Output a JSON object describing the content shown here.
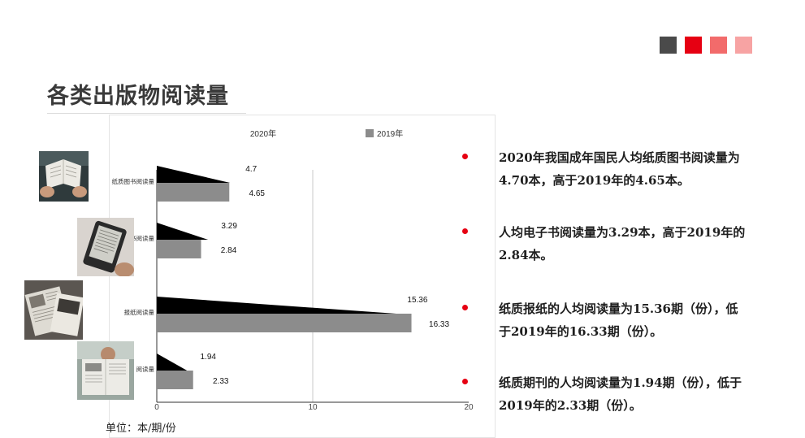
{
  "header": {
    "title": "各类出版物阅读量",
    "accent_squares": [
      "#4a4a4a",
      "#e60012",
      "#f26b6b",
      "#f7a3a3"
    ]
  },
  "chart_data": {
    "type": "bar",
    "orientation": "horizontal",
    "categories": [
      "纸质图书阅读量",
      "电子书阅读量",
      "报纸阅读量",
      "期刊阅读量"
    ],
    "category_labels": [
      "纸质图书阅读量",
      "书阅读量",
      "报纸阅读量",
      "阅读量"
    ],
    "series": [
      {
        "name": "2020年",
        "values": [
          4.7,
          3.29,
          15.36,
          1.94
        ],
        "color": "#000000",
        "shape": "wedge"
      },
      {
        "name": "2019年",
        "values": [
          4.65,
          2.84,
          16.33,
          2.33
        ],
        "color": "#8c8c8c",
        "shape": "bar"
      }
    ],
    "value_labels": {
      "2020年": [
        "4.7",
        "3.29",
        "15.36",
        "1.94"
      ],
      "2019年": [
        "4.65",
        "2.84",
        "16.33",
        "2.33"
      ]
    },
    "xlim": [
      0,
      20
    ],
    "xticks": [
      0,
      10,
      20
    ],
    "xtick_labels": [
      "0",
      "10",
      "20"
    ],
    "grid": "vertical at 10",
    "legend_position": "top",
    "unit": "单位：本/期/份"
  },
  "bullets": [
    {
      "text": "2020年我国成年国民人均纸质图书阅读量为4.70本，高于2019年的4.65本。"
    },
    {
      "text": "人均电子书阅读量为3.29本，高于2019年的2.84本。"
    },
    {
      "text": "纸质报纸的人均阅读量为15.36期（份），低于2019年的16.33期（份）。"
    },
    {
      "text": "纸质期刊的人均阅读量为1.94期（份），低于2019年的2.33期（份）。"
    }
  ],
  "photos": [
    {
      "icon": "person-reading-book-photo"
    },
    {
      "icon": "ereader-device-photo"
    },
    {
      "icon": "newspapers-photo"
    },
    {
      "icon": "person-reading-newspaper-photo"
    }
  ]
}
